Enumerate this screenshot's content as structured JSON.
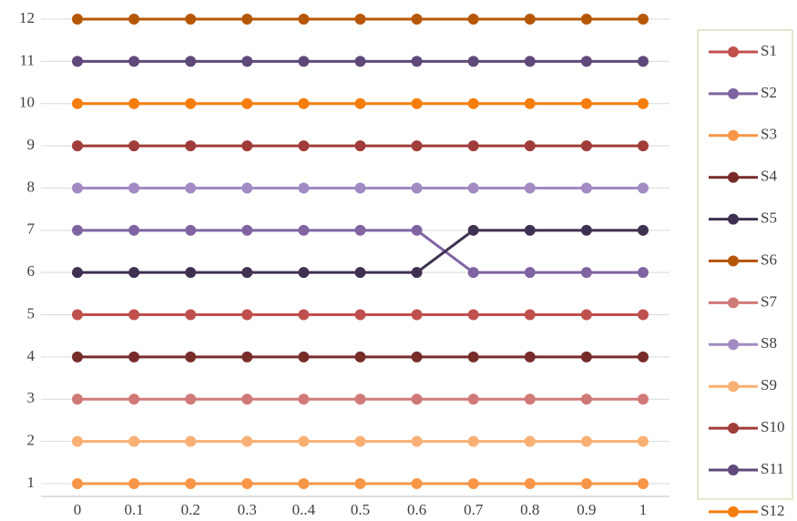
{
  "chart_data": {
    "type": "line",
    "x": [
      0,
      0.1,
      0.2,
      0.3,
      0.4,
      0.5,
      0.6,
      0.7,
      0.8,
      0.9,
      1
    ],
    "xlim": [
      0,
      1
    ],
    "xticks": [
      0,
      0.1,
      0.2,
      0.3,
      {
        "value": 0.4,
        "label": "0..4"
      },
      0.5,
      0.6,
      0.7,
      0.8,
      0.9,
      1
    ],
    "ylim": [
      1,
      12
    ],
    "yticks": [
      1,
      2,
      3,
      4,
      5,
      6,
      7,
      8,
      9,
      10,
      11,
      12
    ],
    "grid": true,
    "legend": "right",
    "series": [
      {
        "name": "S1",
        "color": "#c0504d",
        "values": [
          5,
          5,
          5,
          5,
          5,
          5,
          5,
          5,
          5,
          5,
          5
        ]
      },
      {
        "name": "S2",
        "color": "#8064a2",
        "values": [
          7,
          7,
          7,
          7,
          7,
          7,
          7,
          6,
          6,
          6,
          6
        ]
      },
      {
        "name": "S3",
        "color": "#f79646",
        "values": [
          1,
          1,
          1,
          1,
          1,
          1,
          1,
          1,
          1,
          1,
          1
        ]
      },
      {
        "name": "S4",
        "color": "#772c2a",
        "values": [
          4,
          4,
          4,
          4,
          4,
          4,
          4,
          4,
          4,
          4,
          4
        ]
      },
      {
        "name": "S5",
        "color": "#3f3151",
        "values": [
          6,
          6,
          6,
          6,
          6,
          6,
          6,
          7,
          7,
          7,
          7
        ]
      },
      {
        "name": "S6",
        "color": "#b65708",
        "values": [
          12,
          12,
          12,
          12,
          12,
          12,
          12,
          12,
          12,
          12,
          12
        ]
      },
      {
        "name": "S7",
        "color": "#d07a78",
        "values": [
          3,
          3,
          3,
          3,
          3,
          3,
          3,
          3,
          3,
          3,
          3
        ]
      },
      {
        "name": "S8",
        "color": "#a18bc2",
        "values": [
          8,
          8,
          8,
          8,
          8,
          8,
          8,
          8,
          8,
          8,
          8
        ]
      },
      {
        "name": "S9",
        "color": "#f9b074",
        "values": [
          2,
          2,
          2,
          2,
          2,
          2,
          2,
          2,
          2,
          2,
          2
        ]
      },
      {
        "name": "S10",
        "color": "#a03c3a",
        "values": [
          9,
          9,
          9,
          9,
          9,
          9,
          9,
          9,
          9,
          9,
          9
        ]
      },
      {
        "name": "S11",
        "color": "#5f497a",
        "values": [
          11,
          11,
          11,
          11,
          11,
          11,
          11,
          11,
          11,
          11,
          11
        ]
      },
      {
        "name": "S12",
        "color": "#f57d0c",
        "values": [
          10,
          10,
          10,
          10,
          10,
          10,
          10,
          10,
          10,
          10,
          10
        ]
      }
    ]
  }
}
